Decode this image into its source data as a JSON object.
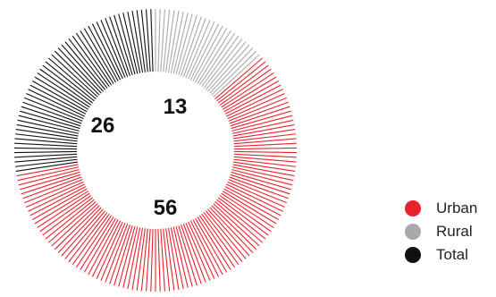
{
  "chart_data": {
    "type": "pie",
    "style": "radial-line donut",
    "categories": [
      "Urban",
      "Rural",
      "Total"
    ],
    "values": [
      56,
      13,
      26
    ],
    "value_labels": [
      "56",
      "13",
      "26"
    ],
    "colors": [
      "#e8212e",
      "#a7a9ac",
      "#111111"
    ],
    "start": "top, clockwise, Rural first",
    "legend": "right-bottom"
  },
  "legend": {
    "items": [
      {
        "label": "Urban",
        "color": "#e8212e"
      },
      {
        "label": "Rural",
        "color": "#a7a9ac"
      },
      {
        "label": "Total",
        "color": "#111111"
      }
    ]
  }
}
